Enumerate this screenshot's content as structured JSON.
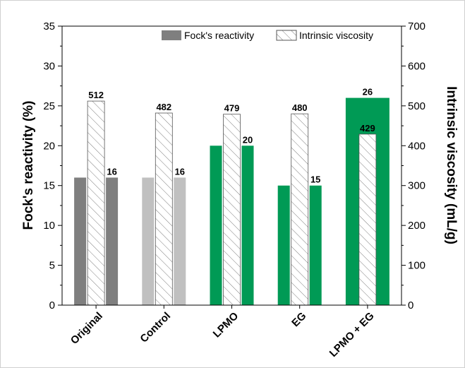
{
  "chart_data": {
    "type": "bar",
    "categories": [
      "Original",
      "Control",
      "LPMO",
      "EG",
      "LPMO + EG"
    ],
    "series": [
      {
        "name": "Fock's reactivity",
        "axis": "left",
        "values": [
          16,
          16,
          20,
          15,
          26
        ],
        "data_labels": [
          "16",
          "16",
          "20",
          "15",
          "26"
        ],
        "colors": [
          "#7f7f7f",
          "#c0c0c0",
          "#009a55",
          "#009a55",
          "#009a55"
        ]
      },
      {
        "name": "Intrinsic viscosity",
        "axis": "right",
        "values": [
          512,
          482,
          479,
          480,
          429
        ],
        "data_labels": [
          "512",
          "482",
          "479",
          "480",
          "429"
        ],
        "pattern": "diagonal-hatch"
      }
    ],
    "ylabel": "Fock's reactivity (%)",
    "y2label": "Intrinsic viscosity (mL/g)",
    "ylim": [
      0,
      35
    ],
    "y2lim": [
      0,
      700
    ],
    "yticks": [
      "0",
      "5",
      "10",
      "15",
      "20",
      "25",
      "30",
      "35"
    ],
    "y2ticks": [
      "0",
      "100",
      "200",
      "300",
      "400",
      "500",
      "600",
      "700"
    ],
    "grid": false,
    "legend_position": "top-right"
  }
}
